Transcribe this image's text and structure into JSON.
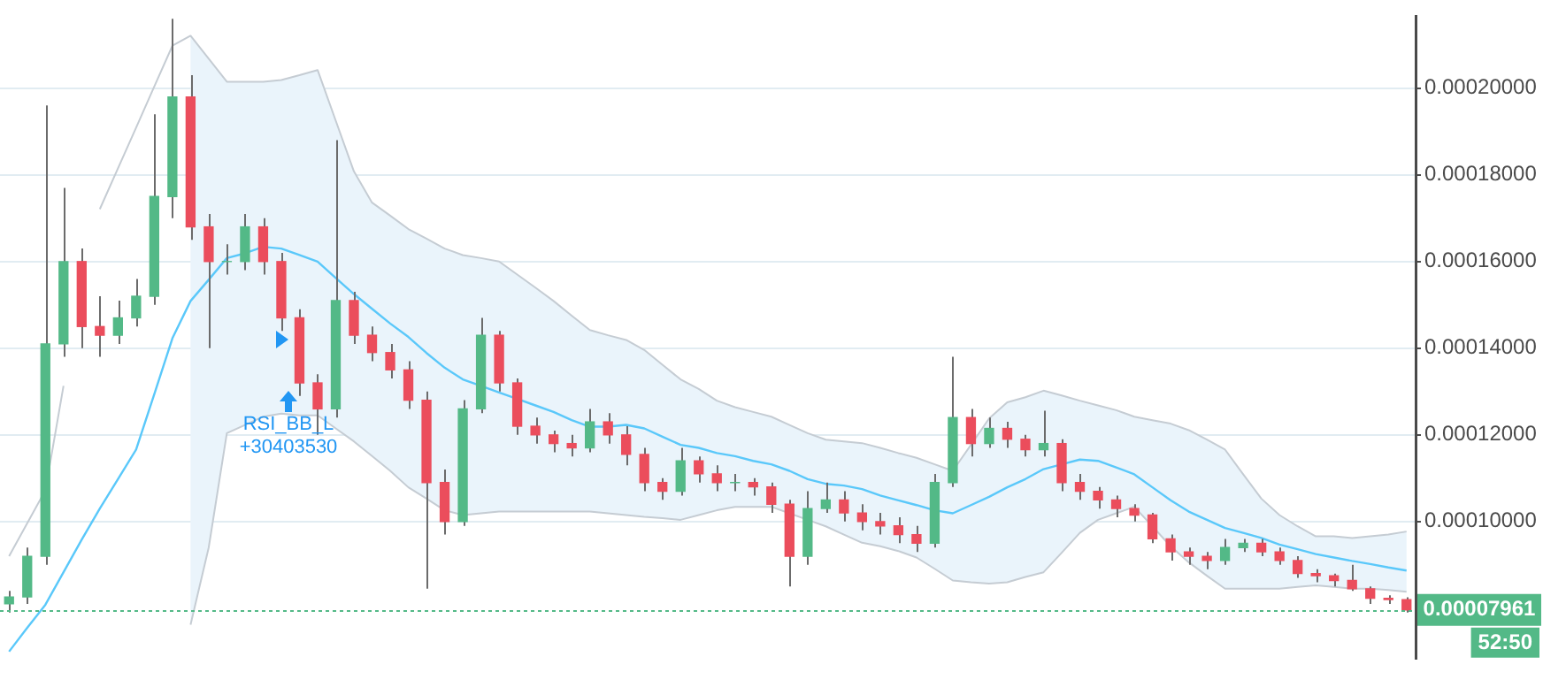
{
  "chart_data": {
    "type": "candlestick",
    "categories": [
      null,
      null,
      null,
      null,
      null,
      null,
      null,
      null,
      null,
      null,
      null,
      null,
      null,
      null,
      null,
      null,
      null,
      null,
      null,
      null,
      null,
      null,
      null,
      null,
      null,
      null,
      null,
      null,
      null,
      null,
      null,
      null,
      null,
      null,
      null,
      null,
      null,
      null,
      null,
      null,
      null,
      null,
      null,
      null,
      null,
      null,
      null,
      null,
      null,
      null,
      null,
      null,
      null,
      null,
      null,
      null,
      null,
      null,
      null,
      null,
      null,
      null,
      null,
      null,
      null,
      null,
      null,
      null,
      null,
      null,
      null,
      null,
      null,
      null,
      null,
      null,
      null,
      null
    ],
    "ohlc": [
      [
        8.1e-05,
        8.4e-05,
        7.9e-05,
        8.26e-05
      ],
      [
        8.26e-05,
        9.4e-05,
        8.1e-05,
        9.2e-05
      ],
      [
        9.2e-05,
        0.000196,
        9e-05,
        0.000141
      ],
      [
        0.000141,
        0.000177,
        0.000138,
        0.00016
      ],
      [
        0.00016,
        0.000163,
        0.00014,
        0.000145
      ],
      [
        0.000145,
        0.000152,
        0.000138,
        0.000143
      ],
      [
        0.000143,
        0.000151,
        0.000141,
        0.000147
      ],
      [
        0.000147,
        0.000156,
        0.000145,
        0.000152
      ],
      [
        0.000152,
        0.000194,
        0.00015,
        0.000175
      ],
      [
        0.000175,
        0.000216,
        0.00017,
        0.000198
      ],
      [
        0.000198,
        0.000203,
        0.000165,
        0.000168
      ],
      [
        0.000168,
        0.000171,
        0.00014,
        0.00016
      ],
      [
        0.00016,
        0.000164,
        0.000157,
        0.00016
      ],
      [
        0.00016,
        0.000171,
        0.000158,
        0.000168
      ],
      [
        0.000168,
        0.00017,
        0.000157,
        0.00016
      ],
      [
        0.00016,
        0.000162,
        0.000144,
        0.000147
      ],
      [
        0.000147,
        0.000149,
        0.000129,
        0.000132
      ],
      [
        0.000132,
        0.000134,
        0.00012,
        0.000126
      ],
      [
        0.000126,
        0.000188,
        0.000124,
        0.000151
      ],
      [
        0.000151,
        0.000153,
        0.000141,
        0.000143
      ],
      [
        0.000143,
        0.000145,
        0.000137,
        0.000139
      ],
      [
        0.000139,
        0.000141,
        0.000133,
        0.000135
      ],
      [
        0.000135,
        0.000137,
        0.000126,
        0.000128
      ],
      [
        0.000128,
        0.00013,
        8.45e-05,
        0.000109
      ],
      [
        0.000109,
        0.000112,
        9.7e-05,
        0.0001
      ],
      [
        0.0001,
        0.000128,
        9.9e-05,
        0.000126
      ],
      [
        0.000126,
        0.000147,
        0.000125,
        0.000143
      ],
      [
        0.000143,
        0.000144,
        0.00013,
        0.000132
      ],
      [
        0.000132,
        0.000133,
        0.00012,
        0.000122
      ],
      [
        0.000122,
        0.000124,
        0.000118,
        0.00012
      ],
      [
        0.00012,
        0.000121,
        0.000116,
        0.000118
      ],
      [
        0.000118,
        0.00012,
        0.000115,
        0.000117
      ],
      [
        0.000117,
        0.000126,
        0.000116,
        0.000123
      ],
      [
        0.000123,
        0.000125,
        0.000118,
        0.00012
      ],
      [
        0.00012,
        0.000122,
        0.000113,
        0.0001155
      ],
      [
        0.0001155,
        0.000117,
        0.000107,
        0.000109
      ],
      [
        0.000109,
        0.00011,
        0.000105,
        0.000107
      ],
      [
        0.000107,
        0.000117,
        0.000106,
        0.000114
      ],
      [
        0.000114,
        0.000115,
        0.000109,
        0.000111
      ],
      [
        0.000111,
        0.000113,
        0.000107,
        0.000109
      ],
      [
        0.000109,
        0.000111,
        0.000107,
        0.000109
      ],
      [
        0.000109,
        0.00011,
        0.000106,
        0.000108
      ],
      [
        0.000108,
        0.000109,
        0.000102,
        0.000104
      ],
      [
        0.000104,
        0.000105,
        8.5e-05,
        9.2e-05
      ],
      [
        9.2e-05,
        0.000107,
        9e-05,
        0.000103
      ],
      [
        0.000103,
        0.000109,
        0.000102,
        0.000105
      ],
      [
        0.000105,
        0.000107,
        0.0001,
        0.000102
      ],
      [
        0.000102,
        0.000104,
        9.8e-05,
        0.0001
      ],
      [
        0.0001,
        0.000102,
        9.7e-05,
        9.9e-05
      ],
      [
        9.9e-05,
        0.000101,
        9.5e-05,
        9.7e-05
      ],
      [
        9.7e-05,
        9.9e-05,
        9.3e-05,
        9.5e-05
      ],
      [
        9.5e-05,
        0.000111,
        9.4e-05,
        0.000109
      ],
      [
        0.000109,
        0.000138,
        0.000108,
        0.000124
      ],
      [
        0.000124,
        0.000126,
        0.000115,
        0.000118
      ],
      [
        0.000118,
        0.000124,
        0.000117,
        0.0001215
      ],
      [
        0.0001215,
        0.000123,
        0.000117,
        0.000119
      ],
      [
        0.000119,
        0.00012,
        0.000115,
        0.0001166
      ],
      [
        0.0001166,
        0.0001256,
        0.000115,
        0.000118
      ],
      [
        0.000118,
        0.000119,
        0.000107,
        0.000109
      ],
      [
        0.000109,
        0.000111,
        0.000105,
        0.000107
      ],
      [
        0.000107,
        0.000108,
        0.000103,
        0.000105
      ],
      [
        0.000105,
        0.000106,
        0.000101,
        0.000103
      ],
      [
        0.000103,
        0.000104,
        0.0001,
        0.0001015
      ],
      [
        0.0001015,
        0.000102,
        9.5e-05,
        9.6e-05
      ],
      [
        9.6e-05,
        9.7e-05,
        9.1e-05,
        9.3e-05
      ],
      [
        9.3e-05,
        9.4e-05,
        9e-05,
        9.2e-05
      ],
      [
        9.2e-05,
        9.3e-05,
        8.9e-05,
        9.1e-05
      ],
      [
        9.1e-05,
        9.6e-05,
        9e-05,
        9.4e-05
      ],
      [
        9.4e-05,
        9.6e-05,
        9.3e-05,
        9.5e-05
      ],
      [
        9.5e-05,
        9.6e-05,
        9.2e-05,
        9.3e-05
      ],
      [
        9.3e-05,
        9.4e-05,
        9e-05,
        9.1e-05
      ],
      [
        9.1e-05,
        9.2e-05,
        8.7e-05,
        8.8e-05
      ],
      [
        8.8e-05,
        8.9e-05,
        8.6e-05,
        8.75e-05
      ],
      [
        8.75e-05,
        8.8e-05,
        8.5e-05,
        8.64e-05
      ],
      [
        8.64e-05,
        9e-05,
        8.4e-05,
        8.45e-05
      ],
      [
        8.45e-05,
        8.5e-05,
        8.1e-05,
        8.23e-05
      ],
      [
        8.23e-05,
        8.3e-05,
        8.1e-05,
        8.2e-05
      ],
      [
        8.2e-05,
        8.25e-05,
        7.9e-05,
        7.961e-05
      ]
    ],
    "series": [
      {
        "type": "line",
        "color": "#5ac8fa",
        "values": [
          7e-05,
          7.55e-05,
          8.08e-05,
          8.83e-05,
          9.58e-05,
          0.000103,
          0.0001098,
          0.0001166,
          0.0001294,
          0.0001423,
          0.0001509,
          0.0001558,
          0.0001608,
          0.0001619,
          0.0001634,
          0.000163,
          0.0001615,
          0.00016,
          0.0001562,
          0.0001525,
          0.0001491,
          0.0001457,
          0.0001426,
          0.0001389,
          0.0001355,
          0.0001328,
          0.0001313,
          0.0001298,
          0.0001283,
          0.0001268,
          0.0001253,
          0.0001234,
          0.0001219,
          0.0001219,
          0.0001223,
          0.0001215,
          0.0001196,
          0.0001177,
          0.000117,
          0.0001158,
          0.0001151,
          0.000114,
          0.0001132,
          0.0001117,
          0.0001098,
          0.0001087,
          0.0001083,
          0.0001075,
          0.000106,
          0.0001049,
          0.0001038,
          0.0001026,
          0.0001019,
          0.0001038,
          0.0001057,
          0.0001079,
          0.0001098,
          0.0001121,
          0.0001132,
          0.0001143,
          0.000114,
          0.0001125,
          0.0001109,
          0.0001079,
          0.0001049,
          0.0001023,
          0.0001004,
          9.85e-05,
          9.74e-05,
          9.62e-05,
          9.47e-05,
          9.36e-05,
          9.25e-05,
          9.17e-05,
          9.09e-05,
          9.02e-05,
          8.94e-05,
          8.87e-05
        ],
        "upper": [
          null,
          null,
          null,
          null,
          null,
          null,
          null,
          null,
          null,
          null,
          0.0002121,
          0.0002068,
          0.0002015,
          0.0002015,
          0.0002015,
          0.0002019,
          0.000203,
          0.0002042,
          0.0001925,
          0.0001808,
          0.0001736,
          0.0001706,
          0.0001675,
          0.0001653,
          0.000163,
          0.0001615,
          0.0001608,
          0.00016,
          0.000157,
          0.000154,
          0.0001509,
          0.0001475,
          0.0001442,
          0.000143,
          0.0001419,
          0.0001396,
          0.0001362,
          0.0001328,
          0.0001306,
          0.0001279,
          0.0001264,
          0.0001253,
          0.0001242,
          0.0001223,
          0.0001204,
          0.0001189,
          0.0001185,
          0.0001181,
          0.000117,
          0.0001158,
          0.0001147,
          0.0001132,
          0.0001117,
          0.0001177,
          0.0001238,
          0.0001275,
          0.0001287,
          0.0001302,
          0.0001291,
          0.0001279,
          0.0001268,
          0.0001257,
          0.0001242,
          0.0001234,
          0.0001226,
          0.0001211,
          0.0001189,
          0.0001166,
          0.0001109,
          0.0001053,
          0.0001015,
          9.89e-05,
          9.66e-05,
          9.66e-05,
          9.62e-05,
          9.66e-05,
          9.7e-05,
          9.77e-05
        ],
        "lower": [
          null,
          null,
          null,
          null,
          null,
          null,
          null,
          null,
          null,
          null,
          7.62e-05,
          9.4e-05,
          0.0001204,
          0.0001223,
          0.0001242,
          0.0001249,
          0.0001245,
          0.0001245,
          0.0001215,
          0.0001185,
          0.0001151,
          0.0001117,
          0.0001079,
          0.0001053,
          0.0001026,
          0.0001015,
          0.0001019,
          0.0001023,
          0.0001023,
          0.0001023,
          0.0001023,
          0.0001023,
          0.0001023,
          0.0001019,
          0.0001015,
          0.0001011,
          0.0001008,
          0.0001004,
          0.0001015,
          0.0001026,
          0.0001034,
          0.0001034,
          0.0001034,
          0.0001019,
          0.0001004,
          9.89e-05,
          9.7e-05,
          9.51e-05,
          9.43e-05,
          9.32e-05,
          9.17e-05,
          8.91e-05,
          8.64e-05,
          8.6e-05,
          8.57e-05,
          8.6e-05,
          8.72e-05,
          8.83e-05,
          9.28e-05,
          9.74e-05,
          0.0001004,
          0.0001019,
          0.0001034,
          9.89e-05,
          9.43e-05,
          9.06e-05,
          8.75e-05,
          8.45e-05,
          8.45e-05,
          8.45e-05,
          8.45e-05,
          8.49e-05,
          8.53e-05,
          8.49e-05,
          8.45e-05,
          8.45e-05,
          8.42e-05,
          8.38e-05
        ]
      },
      {
        "type": "line",
        "color": "#c5ccd3",
        "values": [
          9.2e-05,
          9.96e-05,
          0.0001072,
          0.0001313,
          null,
          0.0001721,
          0.0001815,
          0.0001909,
          0.0002004,
          0.0002098,
          0.0002121,
          0.0002068,
          0.0002015,
          0.0002015,
          0.0002015,
          0.0002019,
          0.000203,
          0.0002042,
          0.0001925,
          0.0001808,
          0.0001736,
          0.0001706,
          0.0001675,
          0.0001653,
          0.000163,
          0.0001615,
          0.0001608,
          0.00016,
          0.000157,
          0.000154,
          0.0001509,
          0.0001475,
          0.0001442,
          0.000143,
          0.0001419,
          0.0001396,
          0.0001362,
          0.0001328,
          0.0001306,
          0.0001279,
          0.0001264,
          0.0001253,
          0.0001242,
          0.0001223,
          0.0001204,
          0.0001189,
          0.0001185,
          0.0001181,
          0.000117,
          0.0001158,
          0.0001147,
          0.0001132,
          0.0001117,
          0.0001177,
          0.0001238,
          0.0001275,
          0.0001287,
          0.0001302,
          0.0001291,
          0.0001279,
          0.0001268,
          0.0001257,
          0.0001242,
          0.0001234,
          0.0001226,
          0.0001211,
          0.0001189,
          0.0001166,
          0.0001109,
          0.0001053,
          0.0001015,
          9.89e-05,
          9.66e-05,
          9.66e-05,
          9.62e-05,
          9.66e-05,
          9.7e-05,
          9.77e-05
        ]
      },
      {
        "type": "line",
        "color": "#c5ccd3",
        "values": [
          null,
          null,
          null,
          null,
          null,
          null,
          null,
          null,
          null,
          null,
          7.62e-05,
          9.4e-05,
          0.0001204,
          0.0001223,
          0.0001242,
          0.0001249,
          0.0001245,
          0.0001245,
          0.0001215,
          0.0001185,
          0.0001151,
          0.0001117,
          0.0001079,
          0.0001053,
          0.0001026,
          0.0001015,
          0.0001019,
          0.0001023,
          0.0001023,
          0.0001023,
          0.0001023,
          0.0001023,
          0.0001023,
          0.0001019,
          0.0001015,
          0.0001011,
          0.0001008,
          0.0001004,
          0.0001015,
          0.0001026,
          0.0001034,
          0.0001034,
          0.0001034,
          0.0001019,
          0.0001004,
          9.89e-05,
          9.7e-05,
          9.51e-05,
          9.43e-05,
          9.32e-05,
          9.17e-05,
          8.91e-05,
          8.64e-05,
          8.6e-05,
          8.57e-05,
          8.6e-05,
          8.72e-05,
          8.83e-05,
          9.28e-05,
          9.74e-05,
          0.0001004,
          0.0001019,
          0.0001034,
          9.89e-05,
          9.43e-05,
          9.06e-05,
          8.75e-05,
          8.45e-05,
          8.45e-05,
          8.45e-05,
          8.45e-05,
          8.49e-05,
          8.53e-05,
          8.49e-05,
          8.45e-05,
          8.45e-05,
          8.42e-05,
          8.38e-05
        ]
      }
    ],
    "ylim": [
      6.83e-05,
      0.0002166
    ],
    "yticks": [
      {
        "value": 0.0001,
        "label": "0.00010000"
      },
      {
        "value": 0.00012,
        "label": "0.00012000"
      },
      {
        "value": 0.00014,
        "label": "0.00014000"
      },
      {
        "value": 0.00016,
        "label": "0.00016000"
      },
      {
        "value": 0.00018,
        "label": "0.00018000"
      },
      {
        "value": 0.0002,
        "label": "0.00020000"
      }
    ],
    "grid": "y",
    "ref_lines": [
      {
        "axis": "y",
        "value": 7.961e-05,
        "label": "0.00007961",
        "color": "#53b987",
        "line_style": "dotted"
      }
    ],
    "annotations": [
      "RSI_BB_L",
      "+30403530",
      "52:50"
    ]
  }
}
